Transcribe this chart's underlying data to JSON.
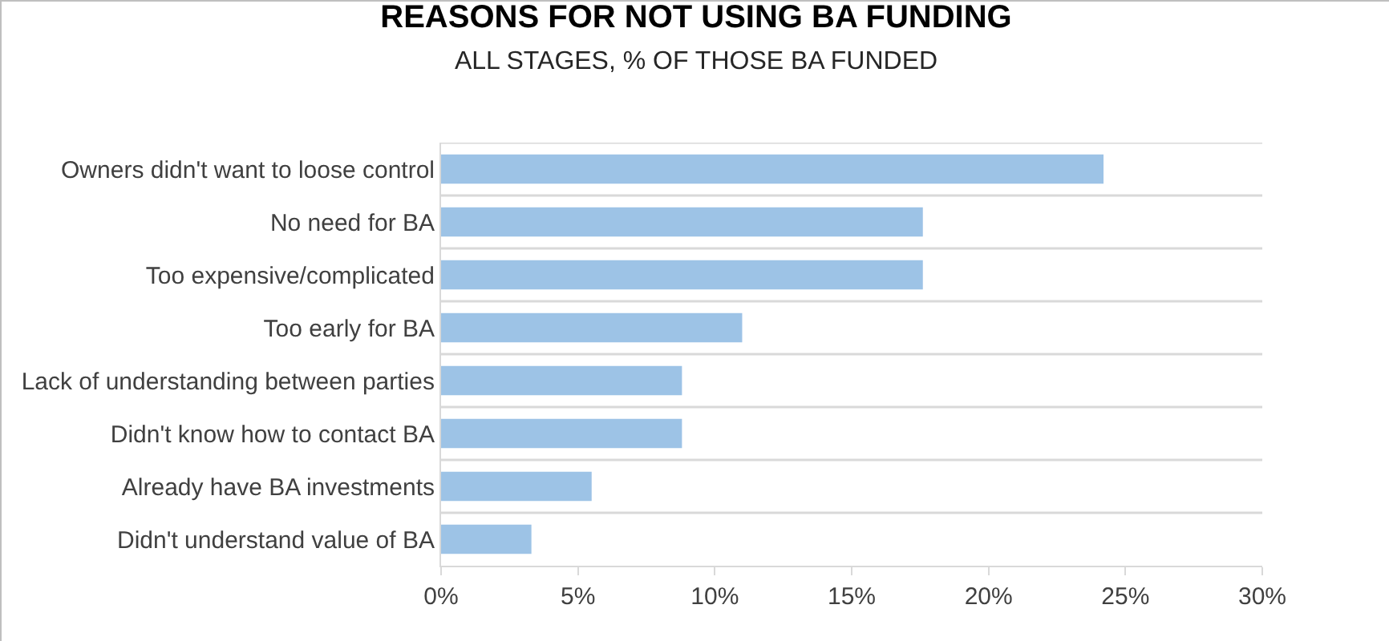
{
  "chart_data": {
    "type": "bar",
    "orientation": "horizontal",
    "title": "REASONS FOR NOT USING BA FUNDING",
    "subtitle": "ALL STAGES, % OF THOSE BA FUNDED",
    "categories": [
      "Owners didn't want to loose control",
      "No need for BA",
      "Too expensive/complicated",
      "Too early for BA",
      "Lack of understanding between parties",
      "Didn't know how to contact BA",
      "Already have BA investments",
      "Didn't understand value of BA"
    ],
    "values": [
      24.2,
      17.6,
      17.6,
      11.0,
      8.8,
      8.8,
      5.5,
      3.3
    ],
    "color": "#9dc3e6",
    "xlim": [
      0,
      30
    ],
    "xticks": [
      {
        "value": 0,
        "label": "0%"
      },
      {
        "value": 5,
        "label": "5%"
      },
      {
        "value": 10,
        "label": "10%"
      },
      {
        "value": 15,
        "label": "15%"
      },
      {
        "value": 20,
        "label": "20%"
      },
      {
        "value": 25,
        "label": "25%"
      },
      {
        "value": 30,
        "label": "30%"
      }
    ],
    "grid": "y",
    "legend": false
  }
}
